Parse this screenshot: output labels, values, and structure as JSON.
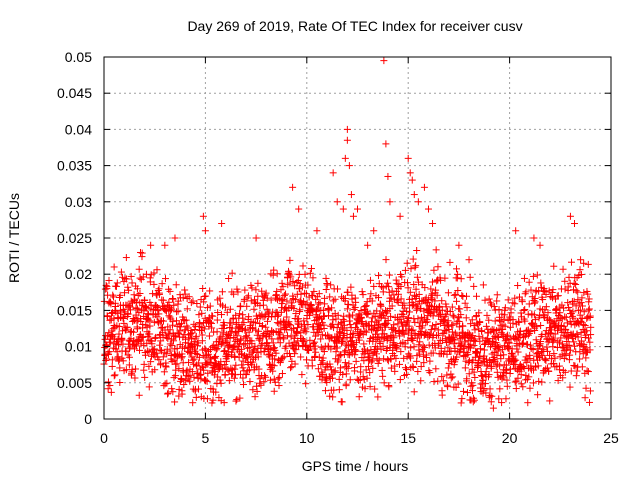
{
  "chart_data": {
    "type": "scatter",
    "title": "Day 269 of 2019, Rate Of TEC Index for receiver cusv",
    "xlabel": "GPS time / hours",
    "ylabel": "ROTI / TECUs",
    "xlim": [
      0,
      25
    ],
    "ylim": [
      0,
      0.05
    ],
    "x_ticks": [
      "0",
      "5",
      "10",
      "15",
      "20",
      "25"
    ],
    "y_ticks": [
      "0",
      "0.005",
      "0.01",
      "0.015",
      "0.02",
      "0.025",
      "0.03",
      "0.035",
      "0.04",
      "0.045",
      "0.05"
    ],
    "grid": true,
    "marker": "plus",
    "color": "#ff0000",
    "x_data_range": [
      0,
      24
    ],
    "series": [
      {
        "x": [
          0.5,
          1.8,
          2.3,
          3.0,
          3.5,
          4.9,
          5.0,
          5.8,
          7.5,
          9.3,
          9.6,
          10.5,
          11.3,
          11.5,
          11.8,
          11.9,
          12.0,
          12.0,
          12.1,
          12.2,
          12.3,
          12.5,
          13.0,
          13.3,
          13.8,
          13.9,
          14.0,
          14.1,
          14.6,
          15.0,
          15.1,
          15.2,
          15.3,
          15.5,
          15.8,
          16.0,
          16.2,
          17.5,
          18.0,
          19.0,
          19.2,
          20.3,
          21.2,
          21.5,
          23.0,
          23.2,
          23.5
        ],
        "y": [
          0.021,
          0.023,
          0.024,
          0.024,
          0.025,
          0.028,
          0.026,
          0.027,
          0.025,
          0.032,
          0.029,
          0.026,
          0.034,
          0.03,
          0.029,
          0.036,
          0.04,
          0.0385,
          0.035,
          0.031,
          0.028,
          0.029,
          0.024,
          0.026,
          0.0495,
          0.038,
          0.0335,
          0.03,
          0.028,
          0.036,
          0.034,
          0.033,
          0.031,
          0.03,
          0.032,
          0.029,
          0.027,
          0.024,
          0.022,
          0.003,
          0.0015,
          0.026,
          0.025,
          0.024,
          0.028,
          0.027,
          0.022
        ]
      }
    ]
  }
}
